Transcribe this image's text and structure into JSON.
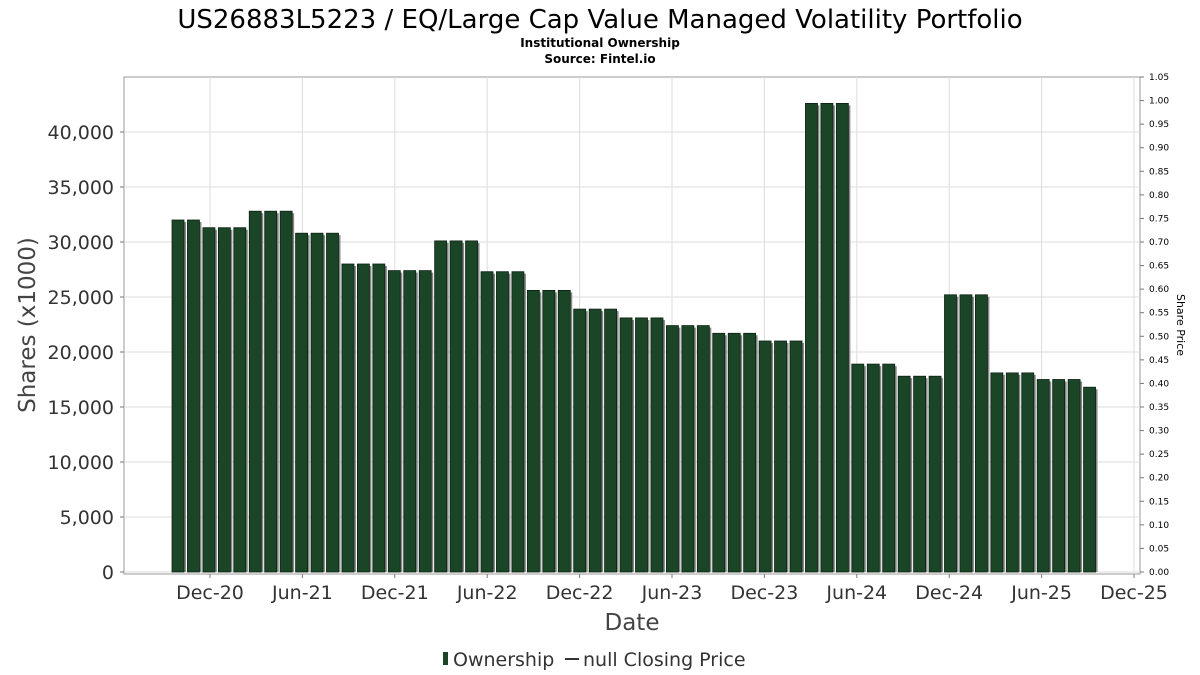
{
  "chart_data": {
    "type": "bar",
    "title": "US26883L5223 / EQ/Large Cap Value Managed Volatility Portfolio",
    "subtitle": "Institutional Ownership",
    "source": "Source: Fintel.io",
    "xlabel": "Date",
    "ylabel": "Shares (x1000)",
    "y2label": "Share Price",
    "ylim": [
      0,
      45000
    ],
    "y2lim": [
      0,
      1.05
    ],
    "y_ticks": [
      "0",
      "5,000",
      "10,000",
      "15,000",
      "20,000",
      "25,000",
      "30,000",
      "35,000",
      "40,000"
    ],
    "y_tick_values": [
      0,
      5000,
      10000,
      15000,
      20000,
      25000,
      30000,
      35000,
      40000
    ],
    "y2_ticks": [
      "0.00",
      "0.05",
      "0.10",
      "0.15",
      "0.20",
      "0.25",
      "0.30",
      "0.35",
      "0.40",
      "0.45",
      "0.50",
      "0.55",
      "0.60",
      "0.65",
      "0.70",
      "0.75",
      "0.80",
      "0.85",
      "0.90",
      "0.95",
      "1.00",
      "1.05"
    ],
    "x_ticks": [
      "Dec-20",
      "Jun-21",
      "Dec-21",
      "Jun-22",
      "Dec-22",
      "Jun-23",
      "Dec-23",
      "Jun-24",
      "Dec-24",
      "Jun-25",
      "Dec-25"
    ],
    "grid": true,
    "bar_color": "#1a4526",
    "series": [
      {
        "name": "Ownership",
        "values": [
          32000,
          32000,
          31300,
          31300,
          31300,
          32800,
          32800,
          32800,
          30800,
          30800,
          30800,
          28000,
          28000,
          28000,
          27400,
          27400,
          27400,
          30100,
          30100,
          30100,
          27300,
          27300,
          27300,
          25600,
          25600,
          25600,
          23900,
          23900,
          23900,
          23100,
          23100,
          23100,
          22400,
          22400,
          22400,
          21700,
          21700,
          21700,
          21000,
          21000,
          21000,
          42600,
          42600,
          42600,
          18900,
          18900,
          18900,
          17800,
          17800,
          17800,
          25200,
          25200,
          25200,
          18100,
          18100,
          18100,
          17500,
          17500,
          17500,
          16800
        ]
      }
    ],
    "legend": {
      "position": "bottom",
      "items": [
        {
          "label": "Ownership",
          "symbol": "bar"
        },
        {
          "label": "null Closing Price",
          "symbol": "line"
        }
      ]
    }
  }
}
